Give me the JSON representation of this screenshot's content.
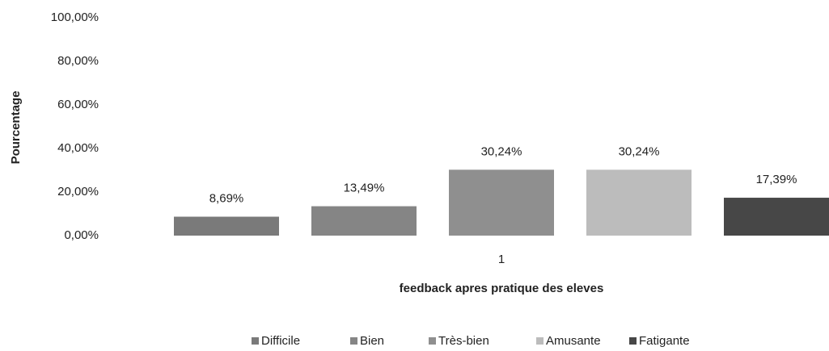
{
  "chart_data": {
    "type": "bar",
    "ylabel": "Pourcentage",
    "xlabel": "feedback apres pratique des eleves",
    "categories": [
      "1"
    ],
    "series": [
      {
        "name": "Difficile",
        "color": "#7a7a7a",
        "values": [
          8.69
        ],
        "value_labels": [
          "8,69%"
        ]
      },
      {
        "name": "Bien",
        "color": "#858585",
        "values": [
          13.49
        ],
        "value_labels": [
          "13,49%"
        ]
      },
      {
        "name": "Très-bien",
        "color": "#8f8f8f",
        "values": [
          30.24
        ],
        "value_labels": [
          "30,24%"
        ]
      },
      {
        "name": "Amusante",
        "color": "#bcbcbc",
        "values": [
          30.24
        ],
        "value_labels": [
          "30,24%"
        ]
      },
      {
        "name": "Fatigante",
        "color": "#474747",
        "values": [
          17.39
        ],
        "value_labels": [
          "17,39%"
        ]
      }
    ],
    "ylim": [
      0,
      100
    ],
    "yticks": [
      {
        "value": 0,
        "label": "0,00%"
      },
      {
        "value": 20,
        "label": "20,00%"
      },
      {
        "value": 40,
        "label": "40,00%"
      },
      {
        "value": 60,
        "label": "60,00%"
      },
      {
        "value": 80,
        "label": "80,00%"
      },
      {
        "value": 100,
        "label": "100,00%"
      }
    ],
    "grid": false,
    "legend": "bottom"
  }
}
